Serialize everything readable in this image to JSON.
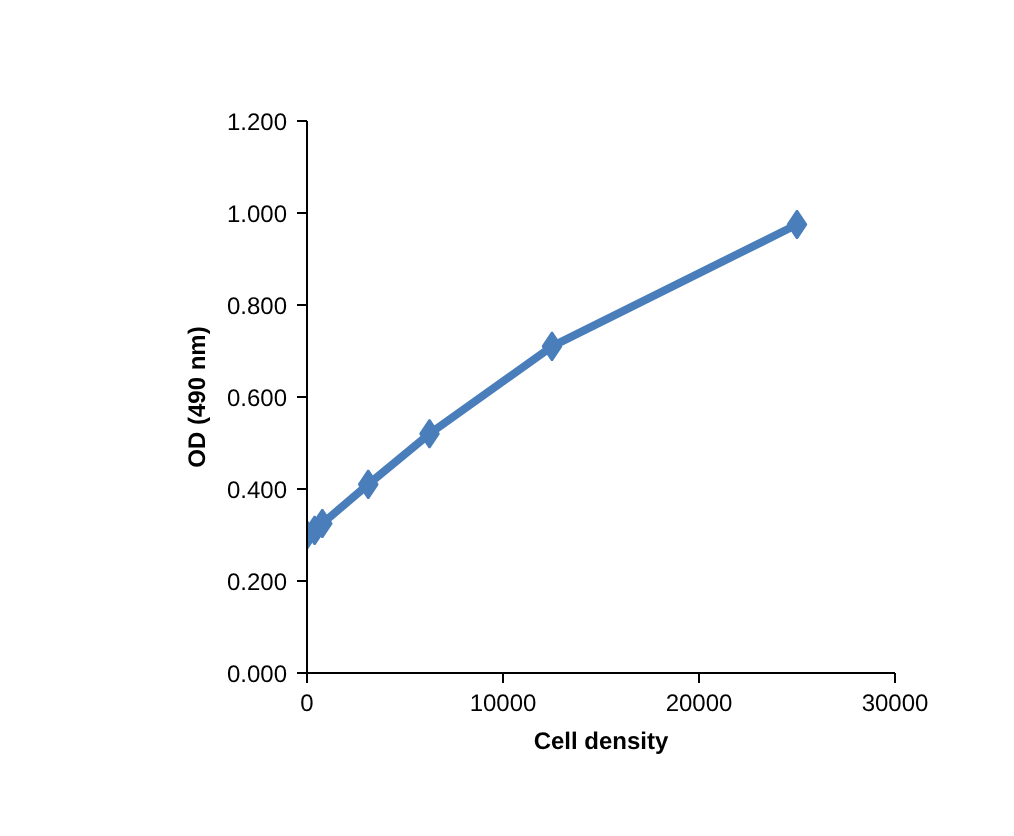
{
  "chart_data": {
    "type": "line",
    "xlabel": "Cell density",
    "ylabel": "OD (490 nm)",
    "x": [
      0,
      390,
      781,
      3125,
      6250,
      12500,
      25000
    ],
    "series": [
      {
        "color": "#4a7ebb",
        "values": [
          0.3,
          0.31,
          0.325,
          0.41,
          0.52,
          0.71,
          0.975
        ]
      }
    ],
    "xlim": [
      0,
      30000
    ],
    "xticks": [
      0,
      10000,
      20000,
      30000
    ],
    "ylim": [
      0,
      1.2
    ],
    "yticks": [
      {
        "value": 0,
        "label": "0.000"
      },
      {
        "value": 0.2,
        "label": "0.200"
      },
      {
        "value": 0.4,
        "label": "0.400"
      },
      {
        "value": 0.6,
        "label": "0.600"
      },
      {
        "value": 0.8,
        "label": "0.800"
      },
      {
        "value": 1.0,
        "label": "1.000"
      },
      {
        "value": 1.2,
        "label": "1.200"
      }
    ],
    "grid": false,
    "marker": "diamond",
    "line_style": "solid"
  }
}
